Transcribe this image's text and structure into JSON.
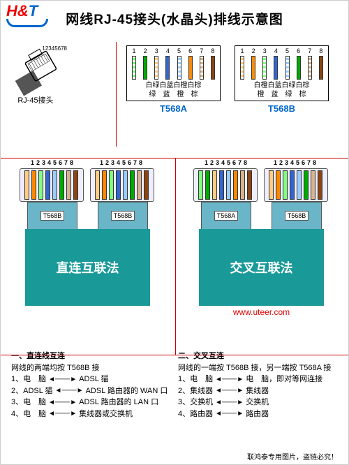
{
  "logo": {
    "h": "H",
    "amp": "&",
    "t": "T"
  },
  "title": "网线RJ-45接头(水晶头)排线示意图",
  "connector": {
    "pins": "12345678",
    "label": "RJ-45接头"
  },
  "t568a": {
    "title": "T568A",
    "pins": [
      "1",
      "2",
      "3",
      "4",
      "5",
      "6",
      "7",
      "8"
    ],
    "colors": [
      "#7fff7f",
      "#00aa00",
      "#ffcc80",
      "#3366cc",
      "#99ccff",
      "#ff8800",
      "#d9b38c",
      "#8b4513"
    ],
    "stripes": [
      true,
      false,
      true,
      false,
      true,
      false,
      true,
      false
    ],
    "row1": "白绿白蓝白橙白棕",
    "row2": "绿　蓝　橙　棕"
  },
  "t568b": {
    "title": "T568B",
    "pins": [
      "1",
      "2",
      "3",
      "4",
      "5",
      "6",
      "7",
      "8"
    ],
    "colors": [
      "#ffcc80",
      "#ff8800",
      "#7fff7f",
      "#3366cc",
      "#99ccff",
      "#00aa00",
      "#d9b38c",
      "#8b4513"
    ],
    "stripes": [
      true,
      false,
      true,
      false,
      true,
      false,
      true,
      false
    ],
    "row1": "白橙白蓝白绿白棕",
    "row2": "橙　蓝　绿　棕"
  },
  "straight": {
    "pinLabel": "12345678",
    "left": {
      "label": "T568B",
      "colors": [
        "#ffcc80",
        "#ff8800",
        "#7fff7f",
        "#3366cc",
        "#99ccff",
        "#00aa00",
        "#d9b38c",
        "#8b4513"
      ]
    },
    "right": {
      "label": "T568B",
      "colors": [
        "#ffcc80",
        "#ff8800",
        "#7fff7f",
        "#3366cc",
        "#99ccff",
        "#00aa00",
        "#d9b38c",
        "#8b4513"
      ]
    },
    "cableText": "直连互联法"
  },
  "cross": {
    "pinLabel": "12345678",
    "left": {
      "label": "T568A",
      "colors": [
        "#7fff7f",
        "#00aa00",
        "#ffcc80",
        "#3366cc",
        "#99ccff",
        "#ff8800",
        "#d9b38c",
        "#8b4513"
      ]
    },
    "right": {
      "label": "T568B",
      "colors": [
        "#ffcc80",
        "#ff8800",
        "#7fff7f",
        "#3366cc",
        "#99ccff",
        "#00aa00",
        "#d9b38c",
        "#8b4513"
      ]
    },
    "cableText": "交叉互联法"
  },
  "website": "www.uteer.com",
  "bottom": {
    "left": {
      "title": "一、直连线互连",
      "desc": "网线的两端均按 T568B 接",
      "items": [
        [
          "1、电　脑",
          "ADSL 猫"
        ],
        [
          "2、ADSL 猫",
          "ADSL 路由器的 WAN 口"
        ],
        [
          "3、电　脑",
          "ADSL 路由器的 LAN 口"
        ],
        [
          "4、电　脑",
          "集线器或交换机"
        ]
      ]
    },
    "right": {
      "title": "二、交叉互连",
      "desc": "网线的一端按 T568B 接，另一端按 T568A 接",
      "items": [
        [
          "1、电　脑",
          "电　脑，即对等网连接"
        ],
        [
          "2、集线器",
          "集线器"
        ],
        [
          "3、交换机",
          "交换机"
        ],
        [
          "4、路由器",
          "路由器"
        ]
      ]
    }
  },
  "footer": "联鸿泰专用图片，盗链必究！"
}
